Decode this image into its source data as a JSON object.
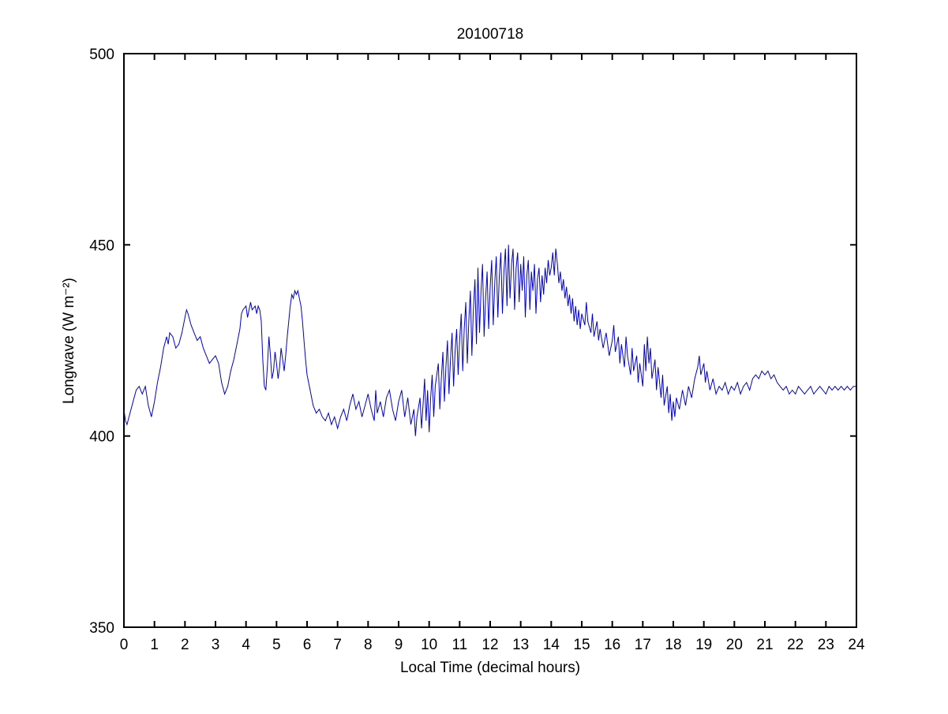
{
  "figure": {
    "background": "#ffffff",
    "axis_color": "#000000"
  },
  "chart_data": {
    "type": "line",
    "title": "20100718",
    "xlabel": "Local Time (decimal hours)",
    "ylabel": "Longwave (W m⁻²)",
    "xlim": [
      0,
      24
    ],
    "ylim": [
      350,
      500
    ],
    "x_ticks": [
      0,
      1,
      2,
      3,
      4,
      5,
      6,
      7,
      8,
      9,
      10,
      11,
      12,
      13,
      14,
      15,
      16,
      17,
      18,
      19,
      20,
      21,
      22,
      23,
      24
    ],
    "y_ticks": [
      350,
      400,
      450,
      500
    ],
    "grid": false,
    "legend": "none",
    "line_color": "#0000CC",
    "points": [
      [
        0,
        407
      ],
      [
        0.05,
        404
      ],
      [
        0.1,
        403
      ],
      [
        0.2,
        406
      ],
      [
        0.3,
        409
      ],
      [
        0.4,
        412
      ],
      [
        0.5,
        413
      ],
      [
        0.6,
        411
      ],
      [
        0.7,
        413
      ],
      [
        0.8,
        408
      ],
      [
        0.9,
        405
      ],
      [
        1,
        409
      ],
      [
        1.1,
        414
      ],
      [
        1.2,
        418
      ],
      [
        1.3,
        423
      ],
      [
        1.4,
        426
      ],
      [
        1.45,
        424
      ],
      [
        1.5,
        427
      ],
      [
        1.6,
        426
      ],
      [
        1.7,
        423
      ],
      [
        1.8,
        424
      ],
      [
        1.9,
        427
      ],
      [
        2,
        431
      ],
      [
        2.05,
        433
      ],
      [
        2.1,
        432
      ],
      [
        2.2,
        429
      ],
      [
        2.3,
        427
      ],
      [
        2.4,
        425
      ],
      [
        2.5,
        426
      ],
      [
        2.6,
        423
      ],
      [
        2.7,
        421
      ],
      [
        2.8,
        419
      ],
      [
        2.9,
        420
      ],
      [
        3,
        421
      ],
      [
        3.1,
        419
      ],
      [
        3.2,
        414
      ],
      [
        3.3,
        411
      ],
      [
        3.4,
        413
      ],
      [
        3.5,
        417
      ],
      [
        3.6,
        420
      ],
      [
        3.7,
        424
      ],
      [
        3.8,
        428
      ],
      [
        3.85,
        432
      ],
      [
        3.9,
        433
      ],
      [
        4,
        434
      ],
      [
        4.05,
        431
      ],
      [
        4.1,
        433
      ],
      [
        4.15,
        435
      ],
      [
        4.2,
        433
      ],
      [
        4.3,
        434
      ],
      [
        4.35,
        432
      ],
      [
        4.4,
        434
      ],
      [
        4.45,
        433
      ],
      [
        4.5,
        430
      ],
      [
        4.55,
        420
      ],
      [
        4.6,
        413
      ],
      [
        4.65,
        412
      ],
      [
        4.7,
        418
      ],
      [
        4.75,
        426
      ],
      [
        4.8,
        421
      ],
      [
        4.85,
        415
      ],
      [
        4.9,
        417
      ],
      [
        4.95,
        422
      ],
      [
        5,
        419
      ],
      [
        5.05,
        415
      ],
      [
        5.1,
        418
      ],
      [
        5.15,
        423
      ],
      [
        5.2,
        420
      ],
      [
        5.25,
        417
      ],
      [
        5.3,
        421
      ],
      [
        5.35,
        426
      ],
      [
        5.4,
        430
      ],
      [
        5.45,
        434
      ],
      [
        5.5,
        437
      ],
      [
        5.55,
        436
      ],
      [
        5.6,
        438
      ],
      [
        5.65,
        437
      ],
      [
        5.7,
        438
      ],
      [
        5.75,
        436
      ],
      [
        5.8,
        434
      ],
      [
        5.85,
        430
      ],
      [
        5.9,
        425
      ],
      [
        5.95,
        420
      ],
      [
        6,
        416
      ],
      [
        6.1,
        412
      ],
      [
        6.2,
        408
      ],
      [
        6.3,
        406
      ],
      [
        6.4,
        407
      ],
      [
        6.5,
        405
      ],
      [
        6.6,
        404
      ],
      [
        6.7,
        406
      ],
      [
        6.8,
        403
      ],
      [
        6.9,
        405
      ],
      [
        7,
        402
      ],
      [
        7.1,
        405
      ],
      [
        7.2,
        407
      ],
      [
        7.3,
        404
      ],
      [
        7.4,
        408
      ],
      [
        7.5,
        411
      ],
      [
        7.6,
        407
      ],
      [
        7.7,
        409
      ],
      [
        7.8,
        405
      ],
      [
        7.9,
        408
      ],
      [
        8,
        411
      ],
      [
        8.1,
        407
      ],
      [
        8.2,
        404
      ],
      [
        8.25,
        412
      ],
      [
        8.3,
        406
      ],
      [
        8.4,
        409
      ],
      [
        8.5,
        405
      ],
      [
        8.6,
        410
      ],
      [
        8.7,
        412
      ],
      [
        8.8,
        407
      ],
      [
        8.9,
        404
      ],
      [
        9,
        409
      ],
      [
        9.1,
        412
      ],
      [
        9.2,
        405
      ],
      [
        9.3,
        410
      ],
      [
        9.4,
        403
      ],
      [
        9.5,
        407
      ],
      [
        9.55,
        400
      ],
      [
        9.6,
        405
      ],
      [
        9.7,
        410
      ],
      [
        9.75,
        402
      ],
      [
        9.8,
        408
      ],
      [
        9.85,
        415
      ],
      [
        9.9,
        404
      ],
      [
        9.95,
        412
      ],
      [
        10,
        401
      ],
      [
        10.05,
        410
      ],
      [
        10.1,
        416
      ],
      [
        10.15,
        405
      ],
      [
        10.2,
        413
      ],
      [
        10.3,
        419
      ],
      [
        10.35,
        407
      ],
      [
        10.4,
        415
      ],
      [
        10.45,
        422
      ],
      [
        10.5,
        409
      ],
      [
        10.55,
        418
      ],
      [
        10.6,
        425
      ],
      [
        10.65,
        411
      ],
      [
        10.7,
        420
      ],
      [
        10.75,
        427
      ],
      [
        10.8,
        413
      ],
      [
        10.85,
        422
      ],
      [
        10.9,
        428
      ],
      [
        10.95,
        416
      ],
      [
        11,
        425
      ],
      [
        11.05,
        432
      ],
      [
        11.1,
        417
      ],
      [
        11.15,
        428
      ],
      [
        11.2,
        435
      ],
      [
        11.25,
        419
      ],
      [
        11.3,
        430
      ],
      [
        11.35,
        438
      ],
      [
        11.4,
        421
      ],
      [
        11.45,
        433
      ],
      [
        11.5,
        441
      ],
      [
        11.55,
        424
      ],
      [
        11.6,
        444
      ],
      [
        11.65,
        427
      ],
      [
        11.7,
        438
      ],
      [
        11.75,
        445
      ],
      [
        11.8,
        426
      ],
      [
        11.85,
        436
      ],
      [
        11.9,
        443
      ],
      [
        11.95,
        428
      ],
      [
        12,
        439
      ],
      [
        12.05,
        446
      ],
      [
        12.1,
        429
      ],
      [
        12.15,
        440
      ],
      [
        12.2,
        447
      ],
      [
        12.25,
        431
      ],
      [
        12.3,
        442
      ],
      [
        12.35,
        448
      ],
      [
        12.4,
        432
      ],
      [
        12.45,
        443
      ],
      [
        12.5,
        449
      ],
      [
        12.55,
        434
      ],
      [
        12.6,
        450
      ],
      [
        12.65,
        436
      ],
      [
        12.7,
        445
      ],
      [
        12.75,
        449
      ],
      [
        12.8,
        433
      ],
      [
        12.85,
        444
      ],
      [
        12.9,
        448
      ],
      [
        12.95,
        435
      ],
      [
        13,
        445
      ],
      [
        13.05,
        438
      ],
      [
        13.1,
        447
      ],
      [
        13.15,
        431
      ],
      [
        13.2,
        442
      ],
      [
        13.25,
        446
      ],
      [
        13.3,
        433
      ],
      [
        13.35,
        443
      ],
      [
        13.4,
        438
      ],
      [
        13.45,
        445
      ],
      [
        13.5,
        432
      ],
      [
        13.55,
        441
      ],
      [
        13.6,
        444
      ],
      [
        13.65,
        435
      ],
      [
        13.7,
        442
      ],
      [
        13.75,
        437
      ],
      [
        13.8,
        444
      ],
      [
        13.85,
        440
      ],
      [
        13.9,
        446
      ],
      [
        13.95,
        442
      ],
      [
        14,
        444
      ],
      [
        14.05,
        448
      ],
      [
        14.1,
        442
      ],
      [
        14.15,
        449
      ],
      [
        14.2,
        445
      ],
      [
        14.25,
        440
      ],
      [
        14.3,
        443
      ],
      [
        14.35,
        438
      ],
      [
        14.4,
        441
      ],
      [
        14.45,
        436
      ],
      [
        14.5,
        439
      ],
      [
        14.55,
        434
      ],
      [
        14.6,
        437
      ],
      [
        14.65,
        432
      ],
      [
        14.7,
        436
      ],
      [
        14.75,
        430
      ],
      [
        14.8,
        434
      ],
      [
        14.85,
        429
      ],
      [
        14.9,
        433
      ],
      [
        14.95,
        428
      ],
      [
        15,
        432
      ],
      [
        15.1,
        429
      ],
      [
        15.15,
        435
      ],
      [
        15.2,
        430
      ],
      [
        15.3,
        427
      ],
      [
        15.35,
        432
      ],
      [
        15.4,
        426
      ],
      [
        15.5,
        430
      ],
      [
        15.55,
        425
      ],
      [
        15.6,
        428
      ],
      [
        15.7,
        423
      ],
      [
        15.8,
        427
      ],
      [
        15.9,
        421
      ],
      [
        16,
        425
      ],
      [
        16.05,
        429
      ],
      [
        16.1,
        422
      ],
      [
        16.2,
        426
      ],
      [
        16.25,
        419
      ],
      [
        16.3,
        424
      ],
      [
        16.4,
        418
      ],
      [
        16.45,
        426
      ],
      [
        16.5,
        421
      ],
      [
        16.6,
        416
      ],
      [
        16.65,
        423
      ],
      [
        16.7,
        417
      ],
      [
        16.8,
        421
      ],
      [
        16.85,
        414
      ],
      [
        16.9,
        419
      ],
      [
        17,
        413
      ],
      [
        17.05,
        424
      ],
      [
        17.1,
        417
      ],
      [
        17.15,
        426
      ],
      [
        17.2,
        419
      ],
      [
        17.25,
        423
      ],
      [
        17.3,
        415
      ],
      [
        17.4,
        420
      ],
      [
        17.45,
        412
      ],
      [
        17.5,
        418
      ],
      [
        17.6,
        410
      ],
      [
        17.65,
        416
      ],
      [
        17.7,
        408
      ],
      [
        17.8,
        413
      ],
      [
        17.85,
        406
      ],
      [
        17.9,
        411
      ],
      [
        17.95,
        404
      ],
      [
        18,
        409
      ],
      [
        18.05,
        405
      ],
      [
        18.1,
        410
      ],
      [
        18.2,
        407
      ],
      [
        18.3,
        412
      ],
      [
        18.4,
        408
      ],
      [
        18.5,
        413
      ],
      [
        18.6,
        410
      ],
      [
        18.7,
        415
      ],
      [
        18.8,
        418
      ],
      [
        18.85,
        421
      ],
      [
        18.9,
        416
      ],
      [
        19,
        419
      ],
      [
        19.05,
        414
      ],
      [
        19.1,
        417
      ],
      [
        19.2,
        412
      ],
      [
        19.3,
        415
      ],
      [
        19.4,
        411
      ],
      [
        19.5,
        413
      ],
      [
        19.6,
        412
      ],
      [
        19.7,
        414
      ],
      [
        19.8,
        411
      ],
      [
        19.9,
        413
      ],
      [
        20,
        412
      ],
      [
        20.1,
        414
      ],
      [
        20.2,
        411
      ],
      [
        20.3,
        413
      ],
      [
        20.4,
        414
      ],
      [
        20.5,
        412
      ],
      [
        20.6,
        415
      ],
      [
        20.7,
        416
      ],
      [
        20.8,
        415
      ],
      [
        20.9,
        417
      ],
      [
        21,
        416
      ],
      [
        21.1,
        417
      ],
      [
        21.2,
        415
      ],
      [
        21.3,
        416
      ],
      [
        21.4,
        414
      ],
      [
        21.5,
        413
      ],
      [
        21.6,
        412
      ],
      [
        21.7,
        413
      ],
      [
        21.8,
        411
      ],
      [
        21.9,
        412
      ],
      [
        22,
        411
      ],
      [
        22.1,
        413
      ],
      [
        22.2,
        412
      ],
      [
        22.3,
        411
      ],
      [
        22.4,
        412
      ],
      [
        22.5,
        413
      ],
      [
        22.6,
        411
      ],
      [
        22.7,
        412
      ],
      [
        22.8,
        413
      ],
      [
        22.9,
        412
      ],
      [
        23,
        411
      ],
      [
        23.1,
        413
      ],
      [
        23.2,
        412
      ],
      [
        23.3,
        413
      ],
      [
        23.4,
        412
      ],
      [
        23.5,
        413
      ],
      [
        23.6,
        412
      ],
      [
        23.7,
        413
      ],
      [
        23.8,
        412
      ],
      [
        23.9,
        413
      ],
      [
        24,
        413
      ]
    ]
  }
}
